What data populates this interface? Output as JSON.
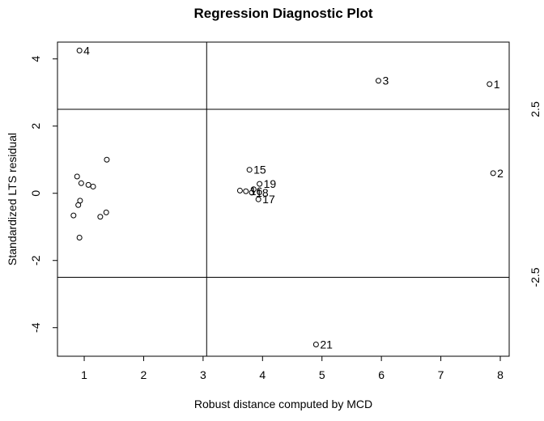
{
  "chart_data": {
    "type": "scatter",
    "title": "Regression Diagnostic Plot",
    "xlabel": "Robust distance computed by MCD",
    "ylabel": "Standardized LTS residual",
    "xlim": [
      0.55,
      8.15
    ],
    "ylim": [
      -4.85,
      4.5
    ],
    "x_ticks": [
      1,
      2,
      3,
      4,
      5,
      6,
      7,
      8
    ],
    "y_ticks": [
      -4,
      -2,
      0,
      2,
      4
    ],
    "grid": false,
    "reference_lines": {
      "vertical_x": 3.06,
      "horizontal_y": [
        2.5,
        -2.5
      ],
      "horizontal_labels": [
        "2.5",
        "-2.5"
      ]
    },
    "points": [
      {
        "x": 0.92,
        "y": 4.25,
        "label": "4"
      },
      {
        "x": 5.95,
        "y": 3.35,
        "label": "3"
      },
      {
        "x": 7.82,
        "y": 3.25,
        "label": "1"
      },
      {
        "x": 7.88,
        "y": 0.6,
        "label": "2"
      },
      {
        "x": 4.9,
        "y": -4.5,
        "label": "21"
      },
      {
        "x": 3.78,
        "y": 0.7,
        "label": "15"
      },
      {
        "x": 3.95,
        "y": 0.28,
        "label": "19"
      },
      {
        "x": 3.62,
        "y": 0.08,
        "label": ""
      },
      {
        "x": 3.72,
        "y": 0.06,
        "label": "16"
      },
      {
        "x": 3.85,
        "y": 0.12,
        "label": ""
      },
      {
        "x": 3.82,
        "y": 0.02,
        "label": "18"
      },
      {
        "x": 3.93,
        "y": -0.18,
        "label": "17"
      },
      {
        "x": 1.38,
        "y": 1.0,
        "label": ""
      },
      {
        "x": 0.88,
        "y": 0.5,
        "label": ""
      },
      {
        "x": 0.95,
        "y": 0.3,
        "label": ""
      },
      {
        "x": 1.07,
        "y": 0.25,
        "label": ""
      },
      {
        "x": 1.15,
        "y": 0.2,
        "label": ""
      },
      {
        "x": 0.93,
        "y": -0.22,
        "label": ""
      },
      {
        "x": 0.9,
        "y": -0.35,
        "label": ""
      },
      {
        "x": 1.37,
        "y": -0.57,
        "label": ""
      },
      {
        "x": 0.82,
        "y": -0.66,
        "label": ""
      },
      {
        "x": 1.27,
        "y": -0.7,
        "label": ""
      },
      {
        "x": 0.92,
        "y": -1.32,
        "label": ""
      }
    ]
  }
}
